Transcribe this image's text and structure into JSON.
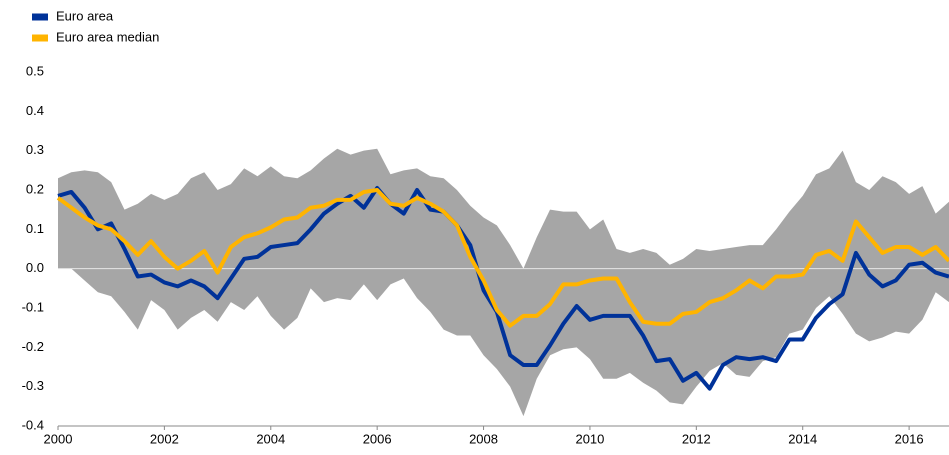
{
  "chart_data": {
    "type": "line",
    "x": [
      2000,
      2000.25,
      2000.5,
      2000.75,
      2001,
      2001.25,
      2001.5,
      2001.75,
      2002,
      2002.25,
      2002.5,
      2002.75,
      2003,
      2003.25,
      2003.5,
      2003.75,
      2004,
      2004.25,
      2004.5,
      2004.75,
      2005,
      2005.25,
      2005.5,
      2005.75,
      2006,
      2006.25,
      2006.5,
      2006.75,
      2007,
      2007.25,
      2007.5,
      2007.75,
      2008,
      2008.25,
      2008.5,
      2008.75,
      2009,
      2009.25,
      2009.5,
      2009.75,
      2010,
      2010.25,
      2010.5,
      2010.75,
      2011,
      2011.25,
      2011.5,
      2011.75,
      2012,
      2012.25,
      2012.5,
      2012.75,
      2013,
      2013.25,
      2013.5,
      2013.75,
      2014,
      2014.25,
      2014.5,
      2014.75,
      2015,
      2015.25,
      2015.5,
      2015.75,
      2016,
      2016.25,
      2016.5,
      2016.75
    ],
    "series": [
      {
        "name": "Euro area",
        "color": "#003299",
        "values": [
          0.185,
          0.195,
          0.155,
          0.1,
          0.115,
          0.05,
          -0.02,
          -0.015,
          -0.035,
          -0.045,
          -0.03,
          -0.045,
          -0.075,
          -0.025,
          0.025,
          0.03,
          0.055,
          0.06,
          0.065,
          0.1,
          0.14,
          0.165,
          0.185,
          0.155,
          0.205,
          0.165,
          0.14,
          0.2,
          0.15,
          0.145,
          0.11,
          0.06,
          -0.055,
          -0.11,
          -0.22,
          -0.245,
          -0.245,
          -0.195,
          -0.14,
          -0.095,
          -0.13,
          -0.12,
          -0.12,
          -0.12,
          -0.17,
          -0.235,
          -0.23,
          -0.285,
          -0.265,
          -0.305,
          -0.245,
          -0.225,
          -0.23,
          -0.225,
          -0.235,
          -0.18,
          -0.18,
          -0.125,
          -0.09,
          -0.065,
          0.04,
          -0.015,
          -0.045,
          -0.03,
          0.01,
          0.015,
          -0.01,
          -0.02
        ]
      },
      {
        "name": "Euro area median",
        "color": "#ffb400",
        "values": [
          0.18,
          0.155,
          0.13,
          0.11,
          0.1,
          0.07,
          0.035,
          0.07,
          0.03,
          0.0,
          0.02,
          0.045,
          -0.01,
          0.055,
          0.08,
          0.09,
          0.105,
          0.125,
          0.13,
          0.155,
          0.16,
          0.175,
          0.175,
          0.195,
          0.2,
          0.165,
          0.16,
          0.18,
          0.165,
          0.145,
          0.11,
          0.03,
          -0.03,
          -0.105,
          -0.145,
          -0.12,
          -0.12,
          -0.09,
          -0.04,
          -0.04,
          -0.03,
          -0.025,
          -0.025,
          -0.085,
          -0.135,
          -0.14,
          -0.14,
          -0.115,
          -0.11,
          -0.085,
          -0.075,
          -0.055,
          -0.03,
          -0.05,
          -0.02,
          -0.02,
          -0.015,
          0.035,
          0.045,
          0.02,
          0.12,
          0.08,
          0.04,
          0.055,
          0.055,
          0.035,
          0.055,
          0.02
        ]
      }
    ],
    "range": {
      "color": "#a6a6a6",
      "upper": [
        0.23,
        0.245,
        0.25,
        0.245,
        0.22,
        0.15,
        0.165,
        0.19,
        0.175,
        0.19,
        0.23,
        0.245,
        0.2,
        0.215,
        0.255,
        0.235,
        0.26,
        0.235,
        0.23,
        0.25,
        0.28,
        0.305,
        0.29,
        0.3,
        0.305,
        0.24,
        0.25,
        0.255,
        0.235,
        0.23,
        0.2,
        0.16,
        0.13,
        0.11,
        0.06,
        0.0,
        0.08,
        0.15,
        0.145,
        0.145,
        0.1,
        0.125,
        0.05,
        0.04,
        0.05,
        0.04,
        0.01,
        0.025,
        0.05,
        0.045,
        0.05,
        0.055,
        0.06,
        0.06,
        0.1,
        0.145,
        0.185,
        0.24,
        0.255,
        0.3,
        0.22,
        0.2,
        0.235,
        0.22,
        0.19,
        0.21,
        0.14,
        0.17
      ],
      "lower": [
        0.0,
        0.0,
        -0.03,
        -0.06,
        -0.07,
        -0.11,
        -0.155,
        -0.08,
        -0.105,
        -0.155,
        -0.125,
        -0.105,
        -0.135,
        -0.085,
        -0.105,
        -0.07,
        -0.12,
        -0.155,
        -0.125,
        -0.05,
        -0.085,
        -0.075,
        -0.08,
        -0.04,
        -0.08,
        -0.04,
        -0.025,
        -0.075,
        -0.11,
        -0.155,
        -0.17,
        -0.17,
        -0.22,
        -0.255,
        -0.3,
        -0.375,
        -0.28,
        -0.22,
        -0.205,
        -0.2,
        -0.23,
        -0.28,
        -0.28,
        -0.265,
        -0.29,
        -0.31,
        -0.34,
        -0.345,
        -0.3,
        -0.26,
        -0.24,
        -0.27,
        -0.275,
        -0.235,
        -0.225,
        -0.165,
        -0.155,
        -0.1,
        -0.07,
        -0.115,
        -0.165,
        -0.185,
        -0.175,
        -0.16,
        -0.165,
        -0.13,
        -0.06,
        -0.085
      ]
    },
    "xlim": [
      2000,
      2016.75
    ],
    "xticks": [
      2000,
      2002,
      2004,
      2006,
      2008,
      2010,
      2012,
      2014,
      2016
    ],
    "ylim": [
      -0.4,
      0.5
    ],
    "yticks": [
      {
        "value": -0.4,
        "label": "-0.4"
      },
      {
        "value": -0.3,
        "label": "-0.3"
      },
      {
        "value": -0.2,
        "label": "-0.2"
      },
      {
        "value": -0.1,
        "label": "-0.1"
      },
      {
        "value": 0,
        "label": "0.0"
      },
      {
        "value": 0.1,
        "label": "0.1"
      },
      {
        "value": 0.2,
        "label": "0.2"
      },
      {
        "value": 0.3,
        "label": "0.3"
      },
      {
        "value": 0.4,
        "label": "0.4"
      },
      {
        "value": 0.5,
        "label": "0.5"
      }
    ],
    "grid": false
  }
}
